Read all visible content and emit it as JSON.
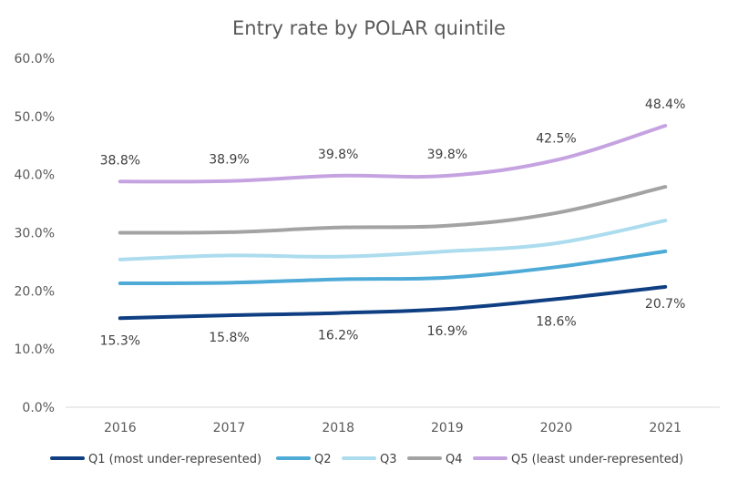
{
  "chart_data": {
    "type": "line",
    "title": "Entry rate by POLAR quintile",
    "xlabel": "",
    "ylabel": "",
    "categories": [
      "2016",
      "2017",
      "2018",
      "2019",
      "2020",
      "2021"
    ],
    "ylim": [
      0,
      60
    ],
    "yticks": [
      "0.0%",
      "10.0%",
      "20.0%",
      "30.0%",
      "40.0%",
      "50.0%",
      "60.0%"
    ],
    "grid": false,
    "legend_position": "bottom",
    "series": [
      {
        "name": "Q1 (most under-represented)",
        "color": "#0f3f82",
        "values": [
          15.3,
          15.8,
          16.2,
          16.9,
          18.6,
          20.7
        ],
        "labels": [
          "15.3%",
          "15.8%",
          "16.2%",
          "16.9%",
          "18.6%",
          "20.7%"
        ]
      },
      {
        "name": "Q2",
        "color": "#4eaad6",
        "values": [
          21.3,
          21.4,
          22.0,
          22.3,
          24.1,
          26.8
        ]
      },
      {
        "name": "Q3",
        "color": "#acdcee",
        "values": [
          25.4,
          26.1,
          25.9,
          26.8,
          28.2,
          32.1
        ]
      },
      {
        "name": "Q4",
        "color": "#a3a3a3",
        "values": [
          30.0,
          30.1,
          30.9,
          31.2,
          33.4,
          37.9
        ]
      },
      {
        "name": "Q5 (least under-represented)",
        "color": "#c5a3e1",
        "values": [
          38.8,
          38.9,
          39.8,
          39.8,
          42.5,
          48.4
        ],
        "labels": [
          "38.8%",
          "38.9%",
          "39.8%",
          "39.8%",
          "42.5%",
          "48.4%"
        ]
      }
    ]
  }
}
